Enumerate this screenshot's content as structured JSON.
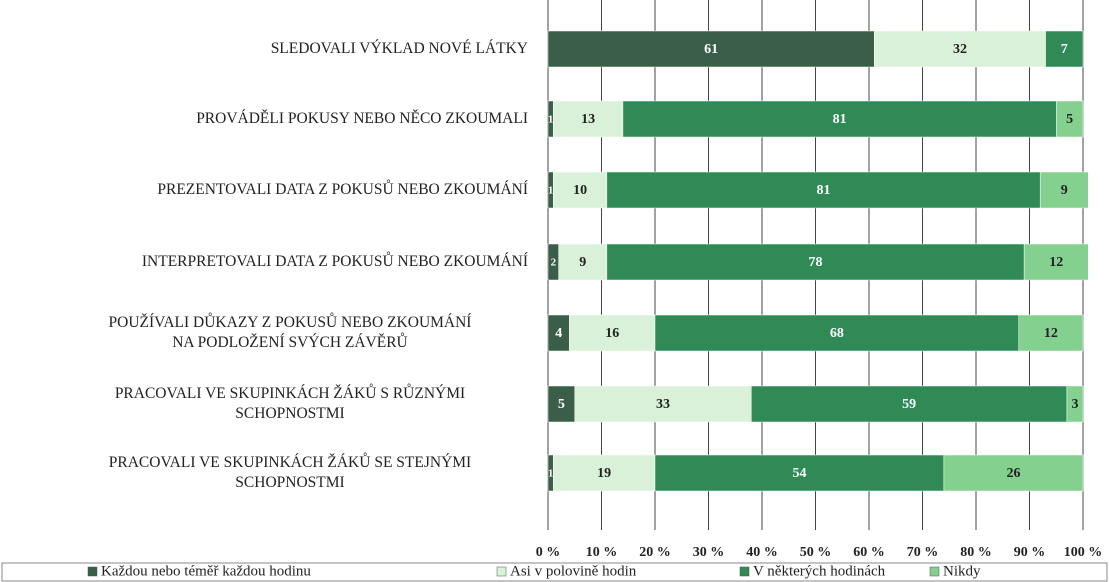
{
  "chart_data": {
    "type": "stacked-bar-horizontal",
    "categories": [
      "SLEDOVALI VÝKLAD NOVÉ LÁTKY",
      "PROVÁDĚLI POKUSY NEBO NĚCO ZKOUMALI",
      "PREZENTOVALI DATA Z POKUSŮ NEBO ZKOUMÁNÍ",
      "INTERPRETOVALI DATA Z POKUSŮ NEBO ZKOUMÁNÍ",
      "POUŽÍVALI DŮKAZY Z POKUSŮ NEBO ZKOUMÁNÍ\nNA PODLOŽENÍ SVÝCH ZÁVĚRŮ",
      "PRACOVALI VE SKUPINKÁCH ŽÁKŮ S RŮZNÝMI\nSCHOPNOSTMI",
      "PRACOVALI VE SKUPINKÁCH ŽÁKŮ SE STEJNÝMI\nSCHOPNOSTMI"
    ],
    "series": [
      {
        "name": "Každou nebo téměř každou hodinu",
        "color": "#3b5e48",
        "values": [
          61,
          1,
          1,
          2,
          4,
          5,
          1
        ]
      },
      {
        "name": "Asi v polovině hodin",
        "color": "#d9f0d9",
        "values": [
          32,
          13,
          10,
          9,
          16,
          33,
          19
        ]
      },
      {
        "name": "V některých hodinách",
        "color": "#2f8a56",
        "values": [
          7,
          81,
          81,
          78,
          68,
          59,
          54
        ]
      },
      {
        "name": "Nikdy",
        "color": "#84d18f",
        "values": [
          0,
          5,
          9,
          12,
          12,
          3,
          26
        ]
      }
    ],
    "xlim": [
      0,
      100
    ],
    "xticks": [
      {
        "value": 0,
        "label": "0 %"
      },
      {
        "value": 10,
        "label": "10 %"
      },
      {
        "value": 20,
        "label": "20 %"
      },
      {
        "value": 30,
        "label": "30 %"
      },
      {
        "value": 40,
        "label": "40 %"
      },
      {
        "value": 50,
        "label": "50 %"
      },
      {
        "value": 60,
        "label": "60 %"
      },
      {
        "value": 70,
        "label": "70 %"
      },
      {
        "value": 80,
        "label": "80 %"
      },
      {
        "value": 90,
        "label": "90 %"
      },
      {
        "value": 100,
        "label": "100 %"
      }
    ],
    "grid": true,
    "legend": "bottom"
  }
}
